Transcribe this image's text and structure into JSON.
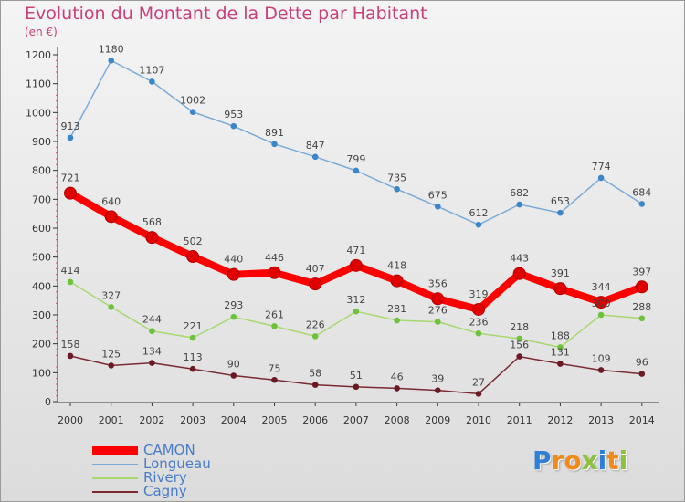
{
  "title": "Evolution du Montant de la Dette par Habitant",
  "subtitle": "(en €)",
  "logo": {
    "letters": [
      "P",
      "r",
      "o",
      "x",
      "i",
      "t",
      "i"
    ],
    "colors": [
      "#2f7fd6",
      "#f08a1c",
      "#f08a1c",
      "#8bc13f",
      "#2f7fd6",
      "#f08a1c",
      "#8bc13f"
    ]
  },
  "chart_data": {
    "type": "line",
    "x": [
      2000,
      2001,
      2002,
      2003,
      2004,
      2005,
      2006,
      2007,
      2008,
      2009,
      2010,
      2011,
      2012,
      2013,
      2014
    ],
    "x_tick_labels": [
      "2000",
      "2001",
      "2002",
      "2003",
      "2004",
      "2005",
      "2006",
      "2007",
      "2008",
      "2009",
      "2010",
      "2011",
      "2012",
      "2013",
      "2014"
    ],
    "ylim": [
      0,
      1200
    ],
    "y_ticks": [
      0,
      100,
      200,
      300,
      400,
      500,
      600,
      700,
      800,
      900,
      1000,
      1100,
      1200
    ],
    "y_tick_labels": [
      "0",
      "100",
      "200",
      "300",
      "400",
      "500",
      "600",
      "700",
      "800",
      "900",
      "1000",
      "1100",
      "1200"
    ],
    "grid": false,
    "legend_position": "bottom-left",
    "series": [
      {
        "name": "CAMON",
        "color": "#ff0000",
        "marker_color": "#e00000",
        "emphasis": true,
        "values": [
          721,
          640,
          568,
          502,
          440,
          446,
          407,
          471,
          418,
          356,
          319,
          443,
          391,
          344,
          397
        ],
        "labels": [
          "721",
          "640",
          "568",
          "502",
          "440",
          "446",
          "407",
          "471",
          "418",
          "356",
          "319",
          "443",
          "391",
          "344",
          "397"
        ]
      },
      {
        "name": "Longueau",
        "color": "#7aaad8",
        "marker_color": "#3a86c8",
        "emphasis": false,
        "values": [
          913,
          1180,
          1107,
          1002,
          953,
          891,
          847,
          799,
          735,
          675,
          612,
          682,
          653,
          774,
          684
        ],
        "labels": [
          "913",
          "1180",
          "1107",
          "1002",
          "953",
          "891",
          "847",
          "799",
          "735",
          "675",
          "612",
          "682",
          "653",
          "774",
          "684"
        ]
      },
      {
        "name": "Rivery",
        "color": "#a8d870",
        "marker_color": "#6cc23a",
        "emphasis": false,
        "values": [
          414,
          327,
          244,
          221,
          293,
          261,
          226,
          312,
          281,
          276,
          236,
          218,
          188,
          300,
          288
        ],
        "labels": [
          "414",
          "327",
          "244",
          "221",
          "293",
          "261",
          "226",
          "312",
          "281",
          "276",
          "236",
          "218",
          "188",
          "300",
          "288"
        ]
      },
      {
        "name": "Cagny",
        "color": "#7a2a32",
        "marker_color": "#6a1a22",
        "emphasis": false,
        "values": [
          158,
          125,
          134,
          113,
          90,
          75,
          58,
          51,
          46,
          39,
          27,
          156,
          131,
          109,
          96
        ],
        "labels": [
          "158",
          "125",
          "134",
          "113",
          "90",
          "75",
          "58",
          "51",
          "46",
          "39",
          "27",
          "156",
          "131",
          "109",
          "96"
        ]
      }
    ]
  }
}
